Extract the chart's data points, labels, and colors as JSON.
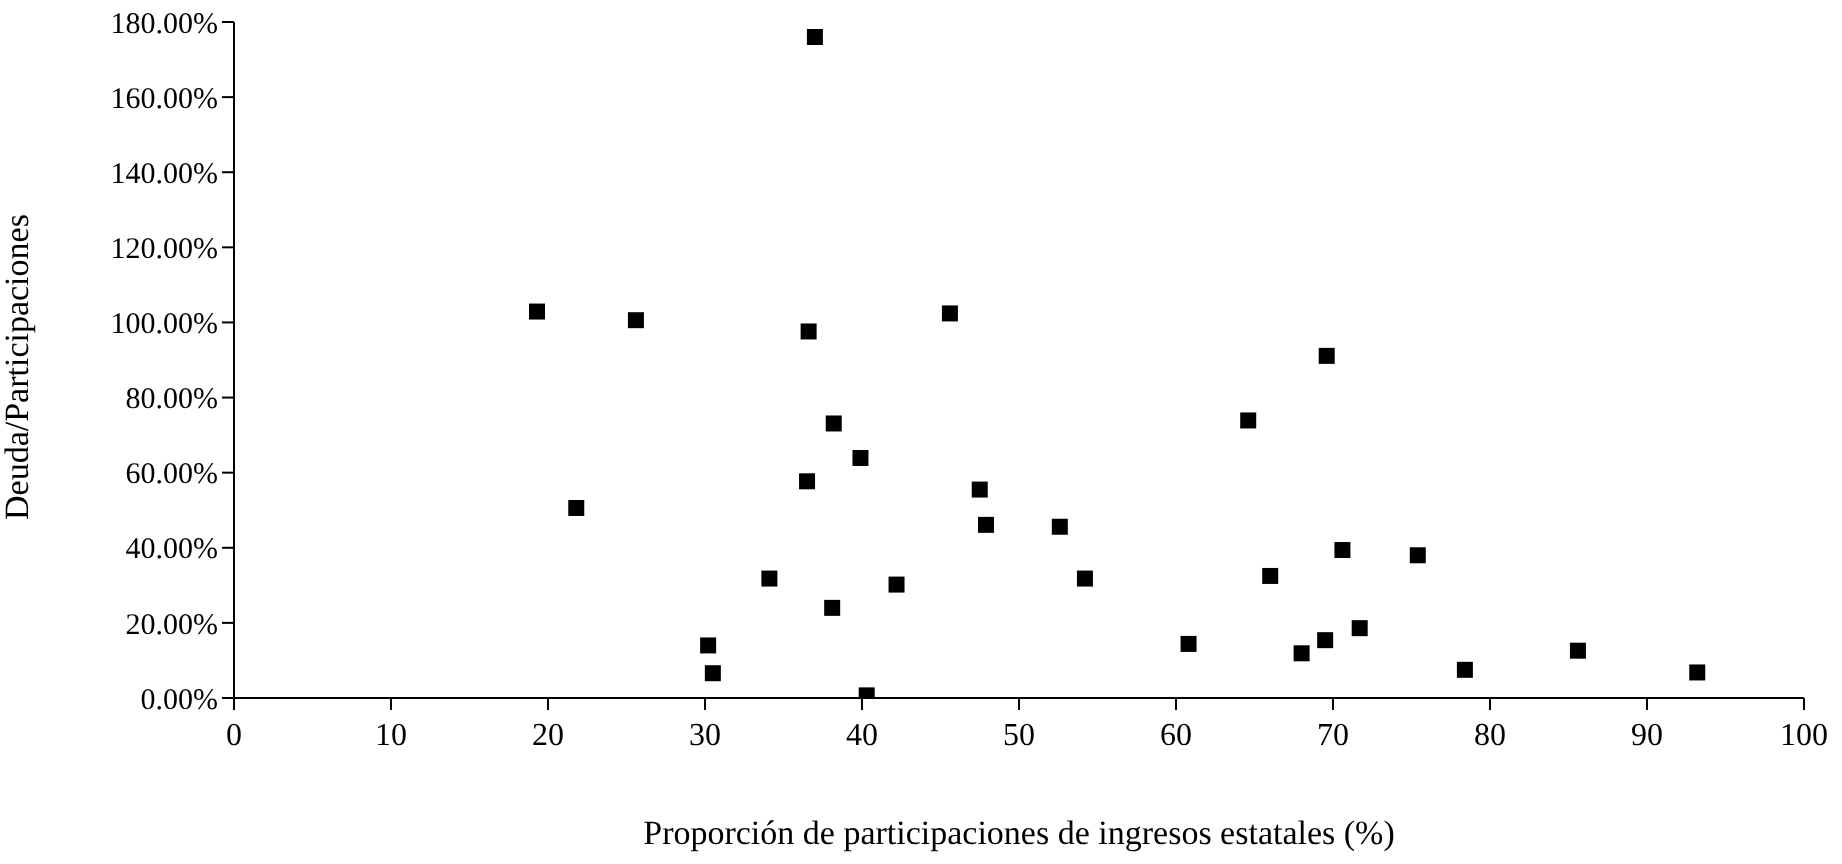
{
  "chart_data": {
    "type": "scatter",
    "xlabel": "Proporción de participaciones de ingresos estatales (%)",
    "ylabel": "Deuda/Participaciones",
    "x": [
      19.3,
      25.6,
      37.0,
      36.6,
      45.6,
      21.8,
      38.2,
      39.9,
      36.5,
      47.5,
      47.9,
      34.1,
      42.2,
      38.1,
      30.2,
      30.5,
      40.3,
      69.6,
      64.6,
      52.6,
      54.2,
      70.6,
      75.4,
      66.0,
      60.8,
      68.0,
      69.5,
      71.7,
      78.4,
      85.6,
      93.2
    ],
    "values": [
      102.9,
      100.6,
      176,
      97.6,
      102.4,
      50.6,
      73.1,
      63.9,
      57.7,
      55.5,
      46.1,
      31.8,
      30.2,
      24.0,
      14.0,
      6.6,
      0.7,
      91.1,
      73.9,
      45.6,
      31.8,
      39.4,
      38.0,
      32.5,
      14.4,
      11.9,
      15.4,
      18.6,
      7.5,
      12.6,
      6.8
    ],
    "color": "#000000",
    "marker": "square",
    "xlim": [
      0,
      100
    ],
    "xticks": [
      0,
      10,
      20,
      30,
      40,
      50,
      60,
      70,
      80,
      90,
      100
    ],
    "ylim": [
      0,
      180
    ],
    "yticks": [
      {
        "value": 0,
        "label": "0.00%"
      },
      {
        "value": 20,
        "label": "20.00%"
      },
      {
        "value": 40,
        "label": "40.00%"
      },
      {
        "value": 60,
        "label": "60.00%"
      },
      {
        "value": 80,
        "label": "80.00%"
      },
      {
        "value": 100,
        "label": "100.00%"
      },
      {
        "value": 120,
        "label": "120.00%"
      },
      {
        "value": 140,
        "label": "140.00%"
      },
      {
        "value": 160,
        "label": "160.00%"
      },
      {
        "value": 180,
        "label": "180.00%"
      }
    ],
    "grid": false,
    "legend": false
  }
}
